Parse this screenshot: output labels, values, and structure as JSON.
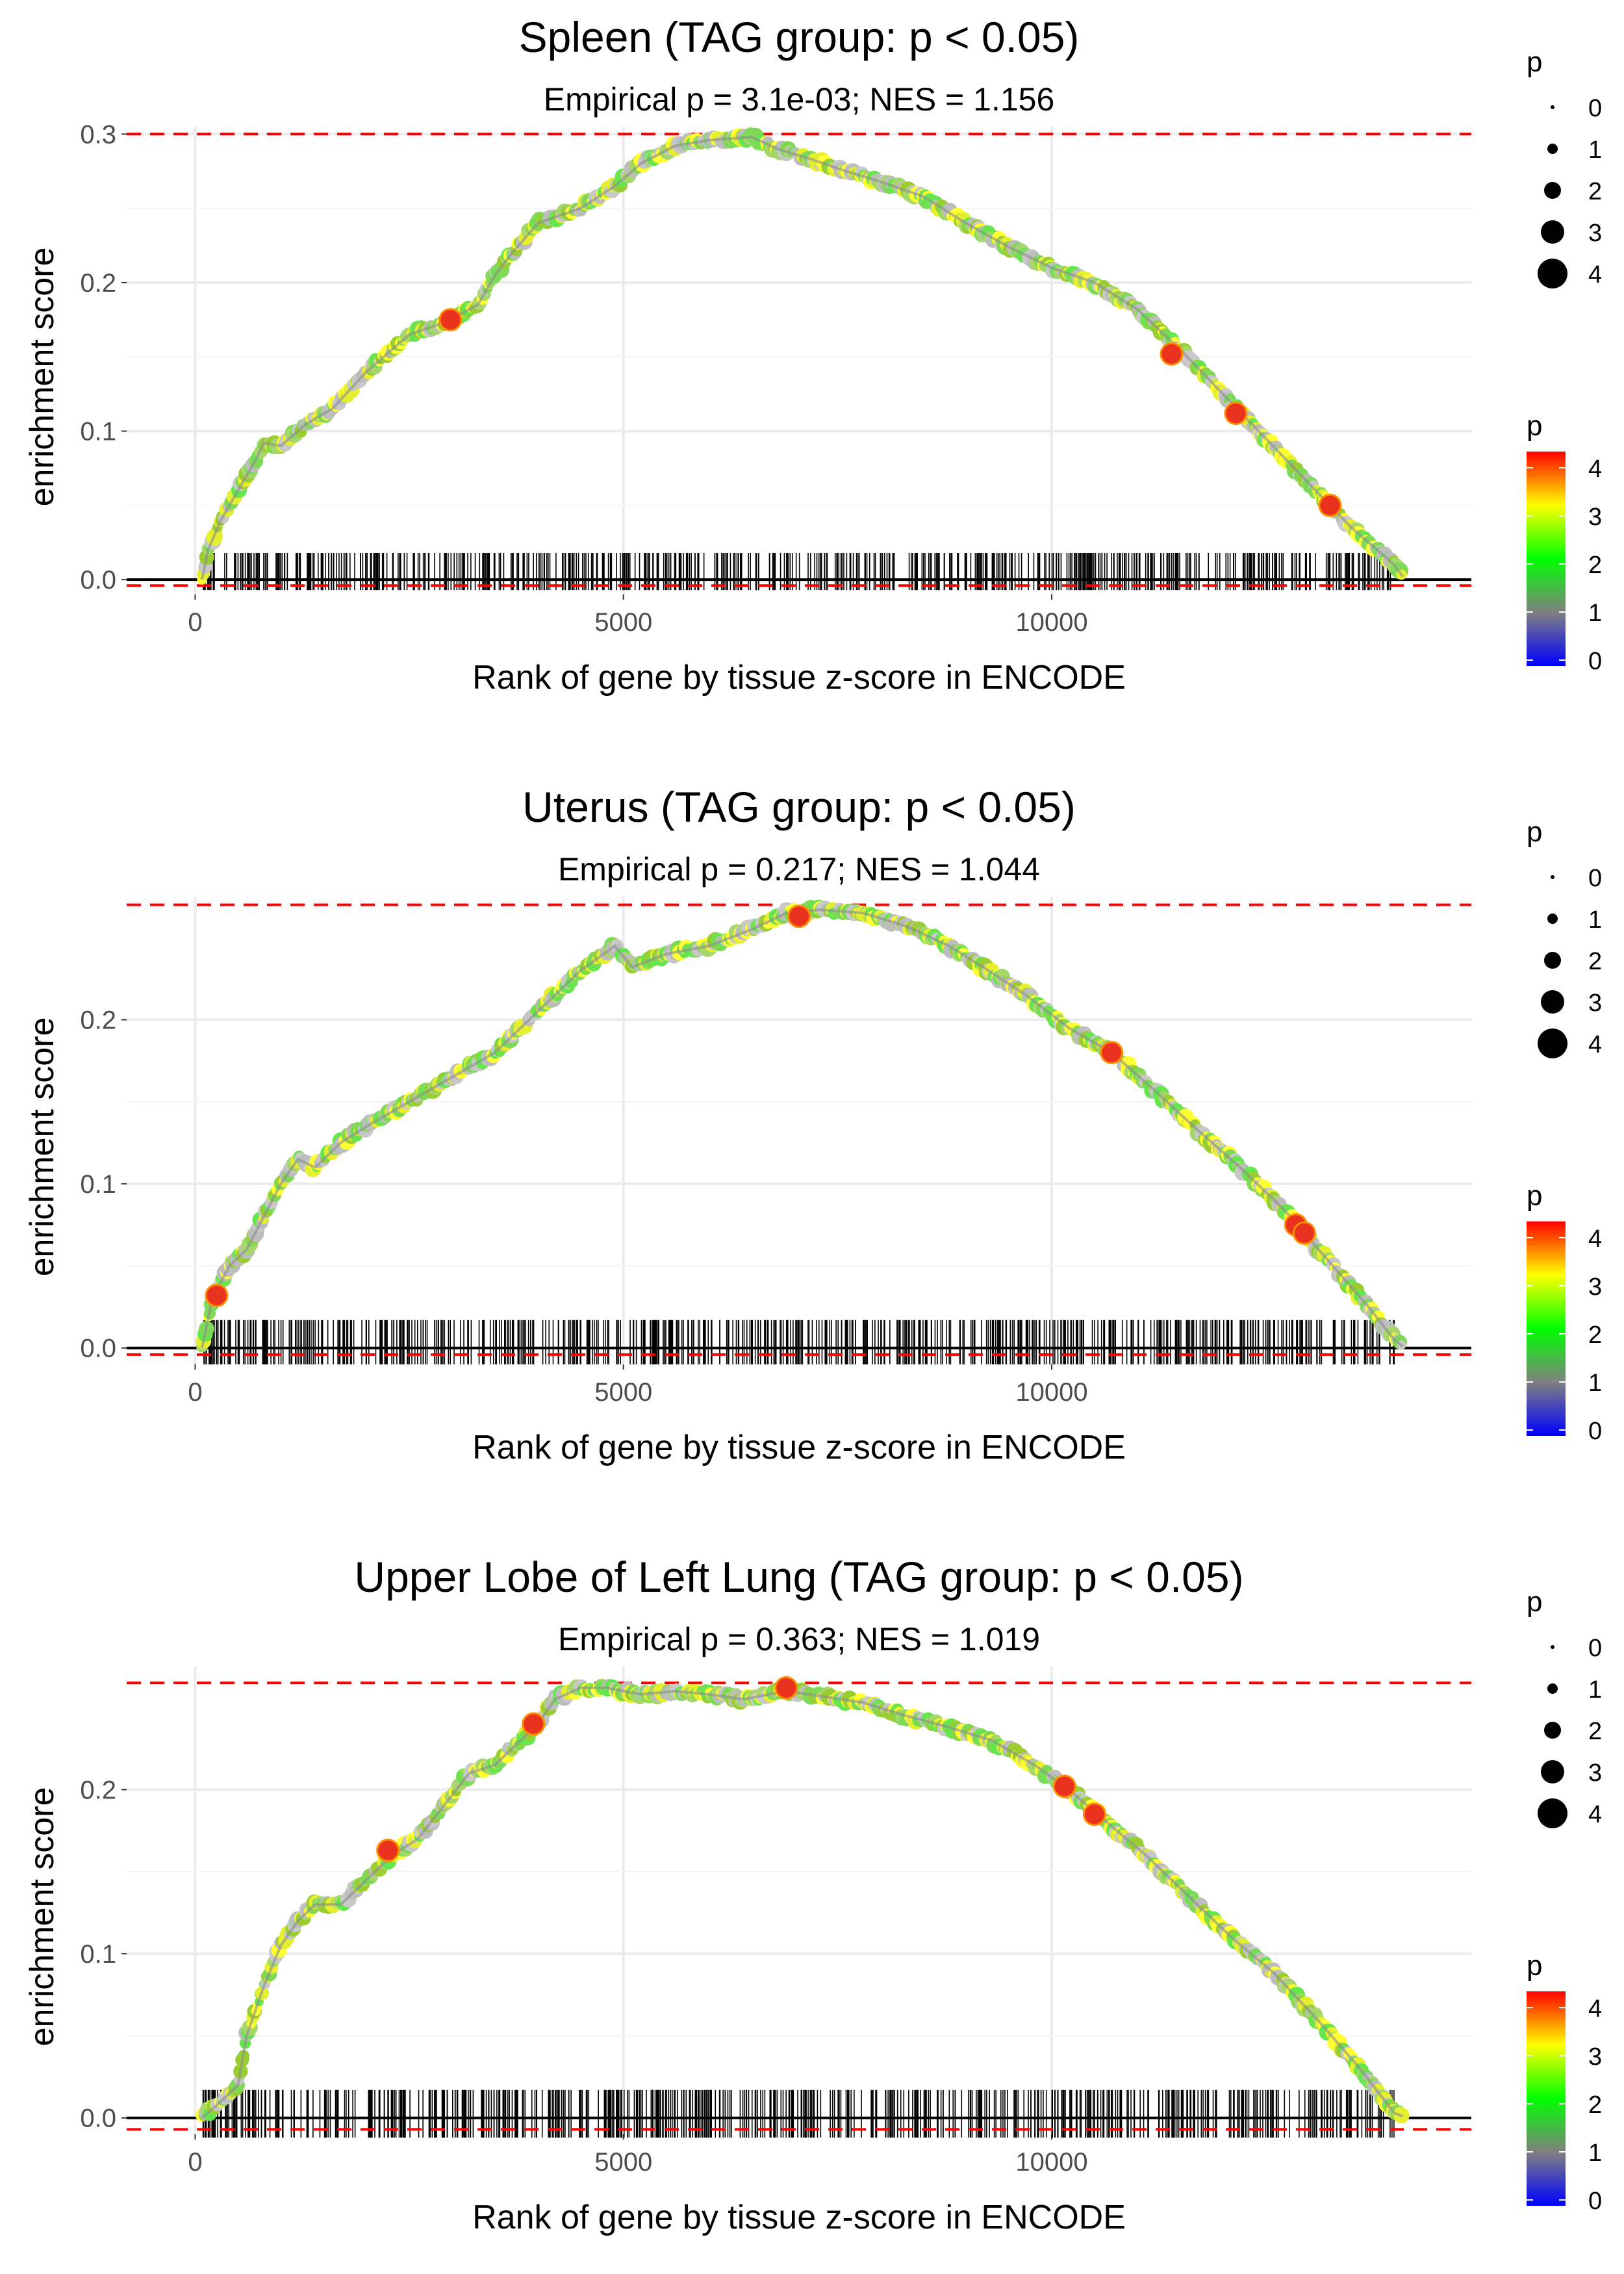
{
  "chart_data": [
    {
      "type": "line",
      "title": "Spleen (TAG group: p < 0.05)",
      "subtitle": "Empirical p = 3.1e-03; NES = 1.156",
      "xlabel": "Rank of gene by tissue z-score in ENCODE",
      "ylabel": "enrichment score",
      "xlim": [
        -800,
        14900
      ],
      "ylim": [
        -0.01,
        0.305
      ],
      "xticks": [
        {
          "value": 0,
          "label": "0"
        },
        {
          "value": 5000,
          "label": "5000"
        },
        {
          "value": 10000,
          "label": "10000"
        }
      ],
      "yticks": [
        {
          "value": 0.0,
          "label": "0.0"
        },
        {
          "value": 0.1,
          "label": "0.1"
        },
        {
          "value": 0.2,
          "label": "0.2"
        },
        {
          "value": 0.3,
          "label": "0.3"
        }
      ],
      "max_es_line": 0.3,
      "min_es_line": -0.004,
      "barcode": {
        "x_start": 80,
        "x_end": 14000,
        "y_bottom": -0.007,
        "y_top": 0.018,
        "count": 620
      },
      "curve": [
        [
          80,
          0
        ],
        [
          150,
          0.02
        ],
        [
          300,
          0.04
        ],
        [
          500,
          0.06
        ],
        [
          700,
          0.08
        ],
        [
          800,
          0.092
        ],
        [
          1000,
          0.09
        ],
        [
          1300,
          0.105
        ],
        [
          1600,
          0.115
        ],
        [
          2000,
          0.14
        ],
        [
          2500,
          0.165
        ],
        [
          2900,
          0.173
        ],
        [
          3300,
          0.185
        ],
        [
          3500,
          0.205
        ],
        [
          3700,
          0.22
        ],
        [
          4000,
          0.24
        ],
        [
          4500,
          0.25
        ],
        [
          4900,
          0.265
        ],
        [
          5200,
          0.28
        ],
        [
          5600,
          0.292
        ],
        [
          6000,
          0.296
        ],
        [
          6500,
          0.298
        ],
        [
          6800,
          0.29
        ],
        [
          7200,
          0.283
        ],
        [
          7600,
          0.275
        ],
        [
          8000,
          0.268
        ],
        [
          8500,
          0.258
        ],
        [
          9000,
          0.24
        ],
        [
          9500,
          0.224
        ],
        [
          10000,
          0.21
        ],
        [
          10500,
          0.2
        ],
        [
          11000,
          0.182
        ],
        [
          11500,
          0.155
        ],
        [
          12000,
          0.125
        ],
        [
          12500,
          0.095
        ],
        [
          13000,
          0.065
        ],
        [
          13500,
          0.035
        ],
        [
          14000,
          0.01
        ],
        [
          14100,
          0.002
        ]
      ],
      "highlight_points": [
        [
          2980,
          0.175
        ],
        [
          11400,
          0.152
        ],
        [
          12150,
          0.112
        ],
        [
          13250,
          0.05
        ]
      ],
      "legend_size": {
        "title": "p",
        "labels": [
          "0",
          "1",
          "2",
          "3",
          "4"
        ]
      },
      "legend_color": {
        "title": "p",
        "labels": [
          "4",
          "3",
          "2",
          "1",
          "0"
        ],
        "colors": [
          "#0000ff",
          "#808080",
          "#00ff00",
          "#ffff00",
          "#ff0000"
        ]
      }
    },
    {
      "type": "line",
      "title": "Uterus (TAG group: p < 0.05)",
      "subtitle": "Empirical p = 0.217; NES = 1.044",
      "xlabel": "Rank of gene by tissue z-score in ENCODE",
      "ylabel": "enrichment score",
      "xlim": [
        -800,
        14900
      ],
      "ylim": [
        -0.01,
        0.275
      ],
      "xticks": [
        {
          "value": 0,
          "label": "0"
        },
        {
          "value": 5000,
          "label": "5000"
        },
        {
          "value": 10000,
          "label": "10000"
        }
      ],
      "yticks": [
        {
          "value": 0.0,
          "label": "0.0"
        },
        {
          "value": 0.1,
          "label": "0.1"
        },
        {
          "value": 0.2,
          "label": "0.2"
        }
      ],
      "max_es_line": 0.27,
      "min_es_line": -0.004,
      "barcode": {
        "x_start": 80,
        "x_end": 14000,
        "y_bottom": -0.01,
        "y_top": 0.017,
        "count": 620
      },
      "curve": [
        [
          80,
          0
        ],
        [
          200,
          0.03
        ],
        [
          400,
          0.05
        ],
        [
          600,
          0.06
        ],
        [
          800,
          0.08
        ],
        [
          1000,
          0.1
        ],
        [
          1200,
          0.115
        ],
        [
          1400,
          0.11
        ],
        [
          1700,
          0.125
        ],
        [
          2000,
          0.135
        ],
        [
          2500,
          0.15
        ],
        [
          3000,
          0.165
        ],
        [
          3500,
          0.18
        ],
        [
          4000,
          0.205
        ],
        [
          4500,
          0.23
        ],
        [
          4900,
          0.245
        ],
        [
          5100,
          0.232
        ],
        [
          5500,
          0.24
        ],
        [
          6000,
          0.245
        ],
        [
          6500,
          0.255
        ],
        [
          6900,
          0.265
        ],
        [
          7300,
          0.267
        ],
        [
          7800,
          0.265
        ],
        [
          8300,
          0.257
        ],
        [
          8800,
          0.245
        ],
        [
          9200,
          0.232
        ],
        [
          9700,
          0.215
        ],
        [
          10200,
          0.195
        ],
        [
          10700,
          0.18
        ],
        [
          11200,
          0.157
        ],
        [
          11700,
          0.133
        ],
        [
          12200,
          0.11
        ],
        [
          12700,
          0.085
        ],
        [
          13200,
          0.055
        ],
        [
          13700,
          0.025
        ],
        [
          14000,
          0.005
        ],
        [
          14100,
          0.001
        ]
      ],
      "highlight_points": [
        [
          250,
          0.032
        ],
        [
          7050,
          0.263
        ],
        [
          10700,
          0.18
        ],
        [
          12850,
          0.075
        ],
        [
          12950,
          0.07
        ]
      ],
      "legend_size": {
        "title": "p",
        "labels": [
          "0",
          "1",
          "2",
          "3",
          "4"
        ]
      },
      "legend_color": {
        "title": "p",
        "labels": [
          "4",
          "3",
          "2",
          "1",
          "0"
        ],
        "colors": [
          "#0000ff",
          "#808080",
          "#00ff00",
          "#ffff00",
          "#ff0000"
        ]
      }
    },
    {
      "type": "line",
      "title": "Upper Lobe of Left Lung (TAG group: p < 0.05)",
      "subtitle": "Empirical p = 0.363; NES = 1.019",
      "xlabel": "Rank of gene by tissue z-score in ENCODE",
      "ylabel": "enrichment score",
      "xlim": [
        -800,
        14900
      ],
      "ylim": [
        -0.01,
        0.275
      ],
      "xticks": [
        {
          "value": 0,
          "label": "0"
        },
        {
          "value": 5000,
          "label": "5000"
        },
        {
          "value": 10000,
          "label": "10000"
        }
      ],
      "yticks": [
        {
          "value": 0.0,
          "label": "0.0"
        },
        {
          "value": 0.1,
          "label": "0.1"
        },
        {
          "value": 0.2,
          "label": "0.2"
        }
      ],
      "max_es_line": 0.265,
      "min_es_line": -0.007,
      "barcode": {
        "x_start": 80,
        "x_end": 14000,
        "y_bottom": -0.012,
        "y_top": 0.017,
        "count": 620
      },
      "curve": [
        [
          80,
          0
        ],
        [
          300,
          0.01
        ],
        [
          500,
          0.02
        ],
        [
          600,
          0.05
        ],
        [
          800,
          0.08
        ],
        [
          1000,
          0.105
        ],
        [
          1200,
          0.12
        ],
        [
          1400,
          0.13
        ],
        [
          1700,
          0.13
        ],
        [
          2000,
          0.145
        ],
        [
          2300,
          0.16
        ],
        [
          2600,
          0.17
        ],
        [
          2900,
          0.19
        ],
        [
          3200,
          0.21
        ],
        [
          3500,
          0.215
        ],
        [
          3800,
          0.23
        ],
        [
          4000,
          0.24
        ],
        [
          4200,
          0.255
        ],
        [
          4500,
          0.262
        ],
        [
          4800,
          0.262
        ],
        [
          5200,
          0.258
        ],
        [
          5600,
          0.26
        ],
        [
          6000,
          0.258
        ],
        [
          6400,
          0.255
        ],
        [
          6900,
          0.26
        ],
        [
          7300,
          0.257
        ],
        [
          7800,
          0.253
        ],
        [
          8300,
          0.245
        ],
        [
          8800,
          0.238
        ],
        [
          9300,
          0.23
        ],
        [
          9800,
          0.215
        ],
        [
          10200,
          0.2
        ],
        [
          10600,
          0.182
        ],
        [
          11100,
          0.16
        ],
        [
          11600,
          0.135
        ],
        [
          12100,
          0.11
        ],
        [
          12600,
          0.088
        ],
        [
          13100,
          0.06
        ],
        [
          13600,
          0.03
        ],
        [
          14000,
          0.003
        ],
        [
          14100,
          0.001
        ]
      ],
      "highlight_points": [
        [
          2250,
          0.163
        ],
        [
          3950,
          0.24
        ],
        [
          6900,
          0.262
        ],
        [
          10150,
          0.202
        ],
        [
          10500,
          0.185
        ]
      ],
      "legend_size": {
        "title": "p",
        "labels": [
          "0",
          "1",
          "2",
          "3",
          "4"
        ]
      },
      "legend_color": {
        "title": "p",
        "labels": [
          "4",
          "3",
          "2",
          "1",
          "0"
        ],
        "colors": [
          "#0000ff",
          "#808080",
          "#00ff00",
          "#ffff00",
          "#ff0000"
        ]
      }
    }
  ]
}
